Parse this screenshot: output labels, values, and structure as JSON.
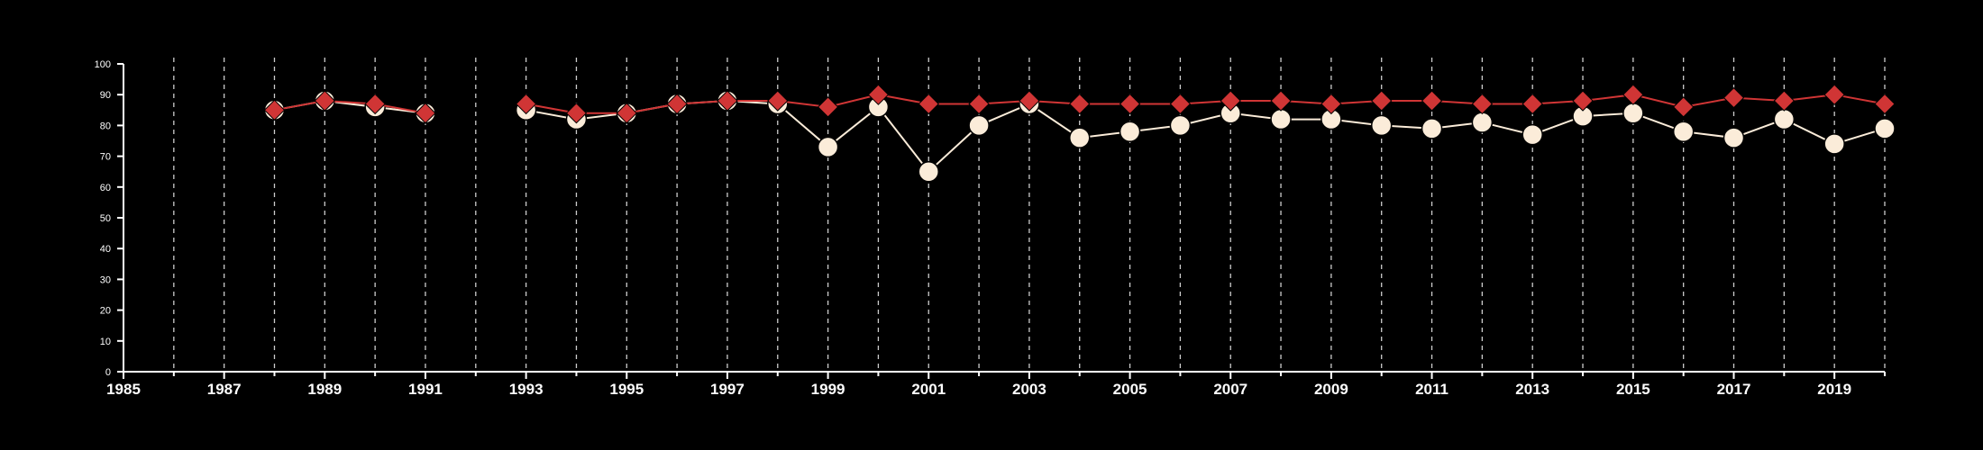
{
  "colors": {
    "background": "#000000",
    "axis": "#ffffff",
    "grid": "#cccccc",
    "series_cream": "#fbecd9",
    "series_red": "#d03535"
  },
  "chart_data": {
    "type": "line",
    "title": "",
    "xlabel": "",
    "ylabel": "",
    "xlim": [
      1985,
      2020
    ],
    "ylim": [
      0,
      100
    ],
    "grid": "vertical dashed lines at every year",
    "legend": "none",
    "x_ticks": [
      1985,
      1987,
      1989,
      1991,
      1993,
      1995,
      1997,
      1999,
      2001,
      2003,
      2005,
      2007,
      2009,
      2011,
      2013,
      2015,
      2017,
      2019
    ],
    "y_ticks": [
      0,
      10,
      20,
      30,
      40,
      50,
      60,
      70,
      80,
      90,
      100
    ],
    "x": [
      1985,
      1986,
      1987,
      1988,
      1989,
      1990,
      1991,
      1992,
      1993,
      1994,
      1995,
      1996,
      1997,
      1998,
      1999,
      2000,
      2001,
      2002,
      2003,
      2004,
      2005,
      2006,
      2007,
      2008,
      2009,
      2010,
      2011,
      2012,
      2013,
      2014,
      2015,
      2016,
      2017,
      2018,
      2019,
      2020
    ],
    "series": [
      {
        "marker": "circle",
        "color": "#fbecd9",
        "values": [
          null,
          null,
          null,
          85,
          88,
          86,
          84,
          null,
          85,
          82,
          84,
          87,
          88,
          87,
          73,
          86,
          65,
          80,
          87,
          76,
          78,
          80,
          84,
          82,
          82,
          80,
          79,
          81,
          77,
          83,
          84,
          78,
          76,
          82,
          74,
          79
        ]
      },
      {
        "marker": "diamond",
        "color": "#d03535",
        "values": [
          null,
          null,
          null,
          85,
          88,
          87,
          84,
          null,
          87,
          84,
          84,
          87,
          88,
          88,
          86,
          90,
          87,
          87,
          88,
          87,
          87,
          87,
          88,
          88,
          87,
          88,
          88,
          87,
          87,
          88,
          90,
          86,
          89,
          88,
          90,
          87
        ]
      }
    ]
  }
}
